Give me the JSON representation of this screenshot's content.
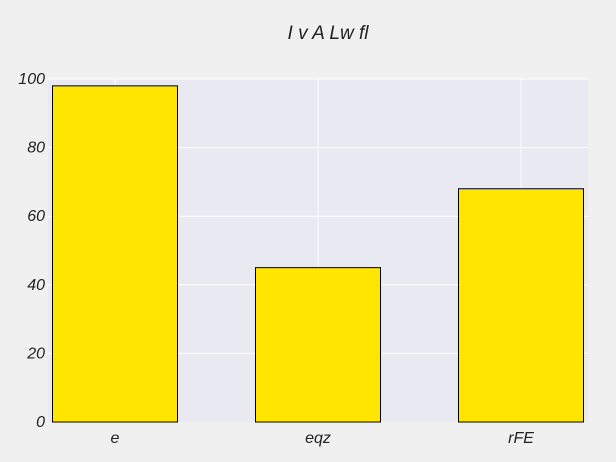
{
  "chart_data": {
    "type": "bar",
    "title": "I v A Lw fl",
    "xlabel": "",
    "ylabel": "",
    "categories": [
      "e",
      "eqz",
      "rFE"
    ],
    "values": [
      98,
      45,
      68
    ],
    "ylim": [
      0,
      100
    ],
    "yticks": [
      0,
      20,
      40,
      60,
      80,
      100
    ],
    "grid": true,
    "colors": {
      "bar_fill": "#ffe500",
      "bar_edge": "#000000",
      "plot_background": "#e9e9f1",
      "page_background": "#f0f0f0",
      "grid": "#ffffff"
    }
  }
}
